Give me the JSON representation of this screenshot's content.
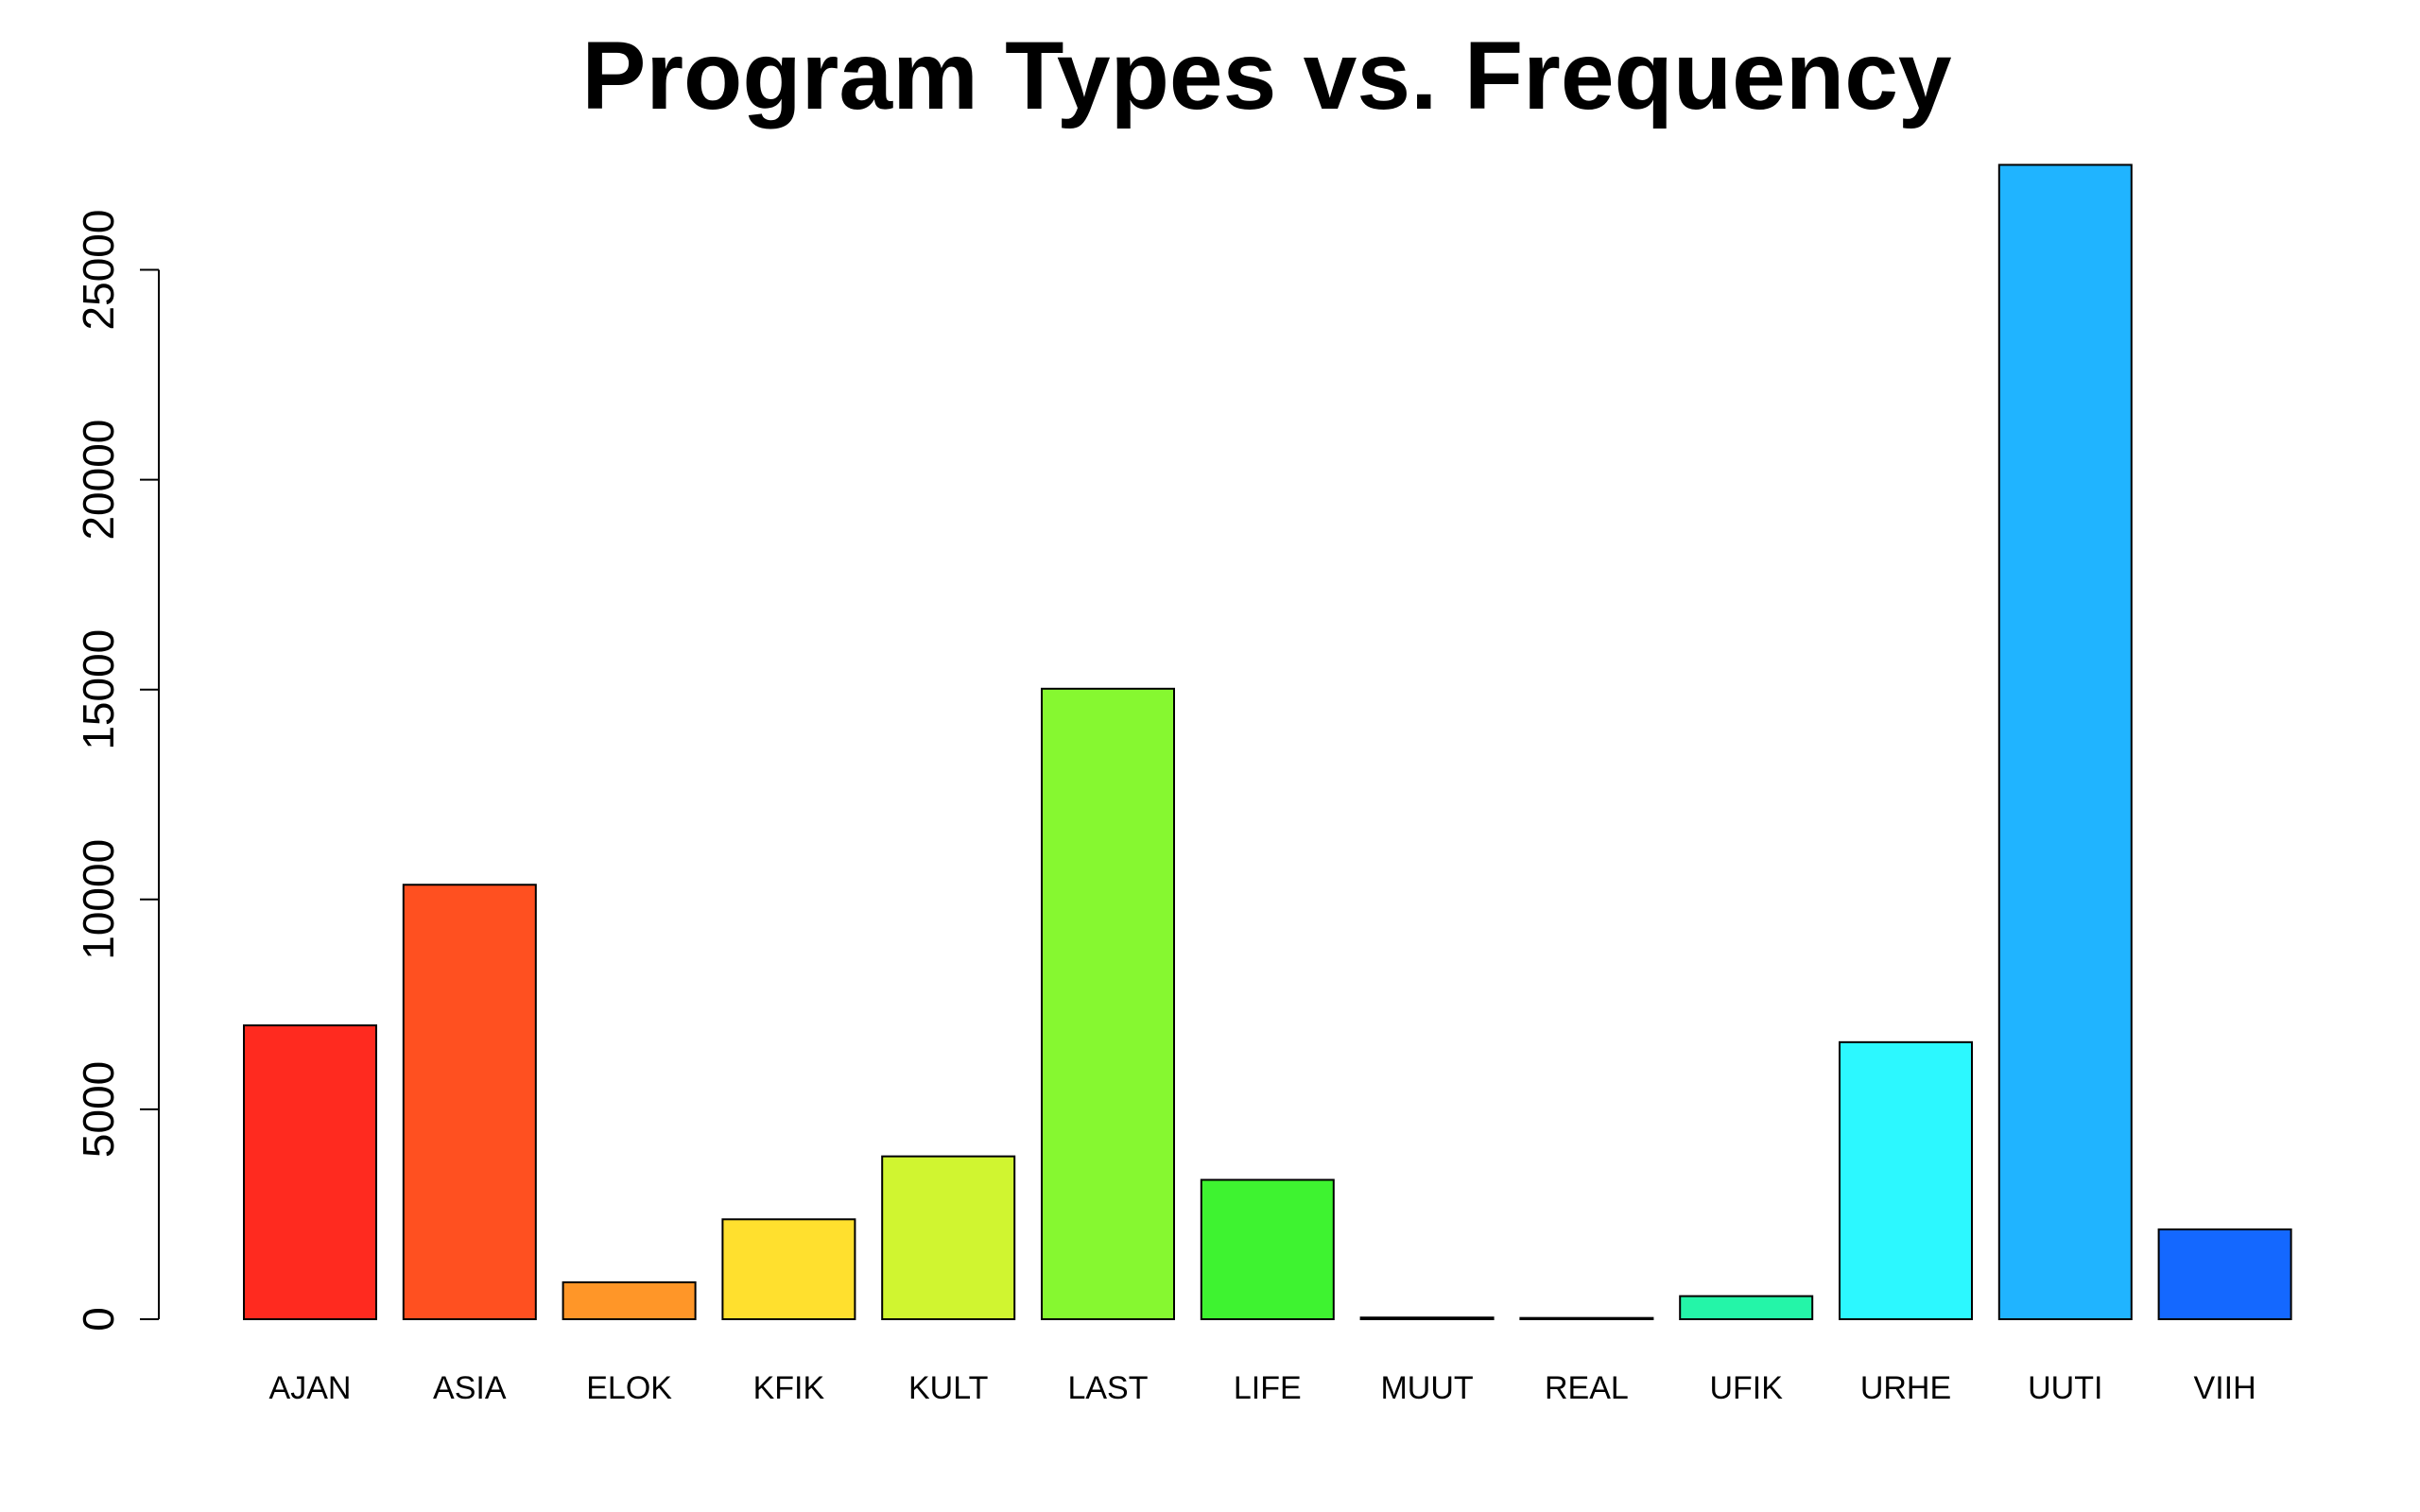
{
  "chart_data": {
    "type": "bar",
    "title": "Program Types vs. Frequency",
    "xlabel": "",
    "ylabel": "",
    "categories": [
      "AJAN",
      "ASIA",
      "ELOK",
      "KFIK",
      "KULT",
      "LAST",
      "LIFE",
      "MUUT",
      "REAL",
      "UFIK",
      "URHE",
      "UUTI",
      "VIIH"
    ],
    "values": [
      7000,
      10350,
      880,
      2380,
      3880,
      15020,
      3320,
      40,
      30,
      550,
      6600,
      27500,
      2140
    ],
    "colors": [
      "#FF2A1F",
      "#FF5020",
      "#FF9628",
      "#FFE02E",
      "#D0F530",
      "#86F830",
      "#3EF330",
      "#2AF08A",
      "#20F0D0",
      "#24F5A8",
      "#2CF8FF",
      "#20B4FF",
      "#1468FF"
    ],
    "y_ticks": [
      "0",
      "5000",
      "10000",
      "15000",
      "20000",
      "25000"
    ],
    "ylim": [
      0,
      27500
    ],
    "grid": false,
    "legend": "none"
  }
}
